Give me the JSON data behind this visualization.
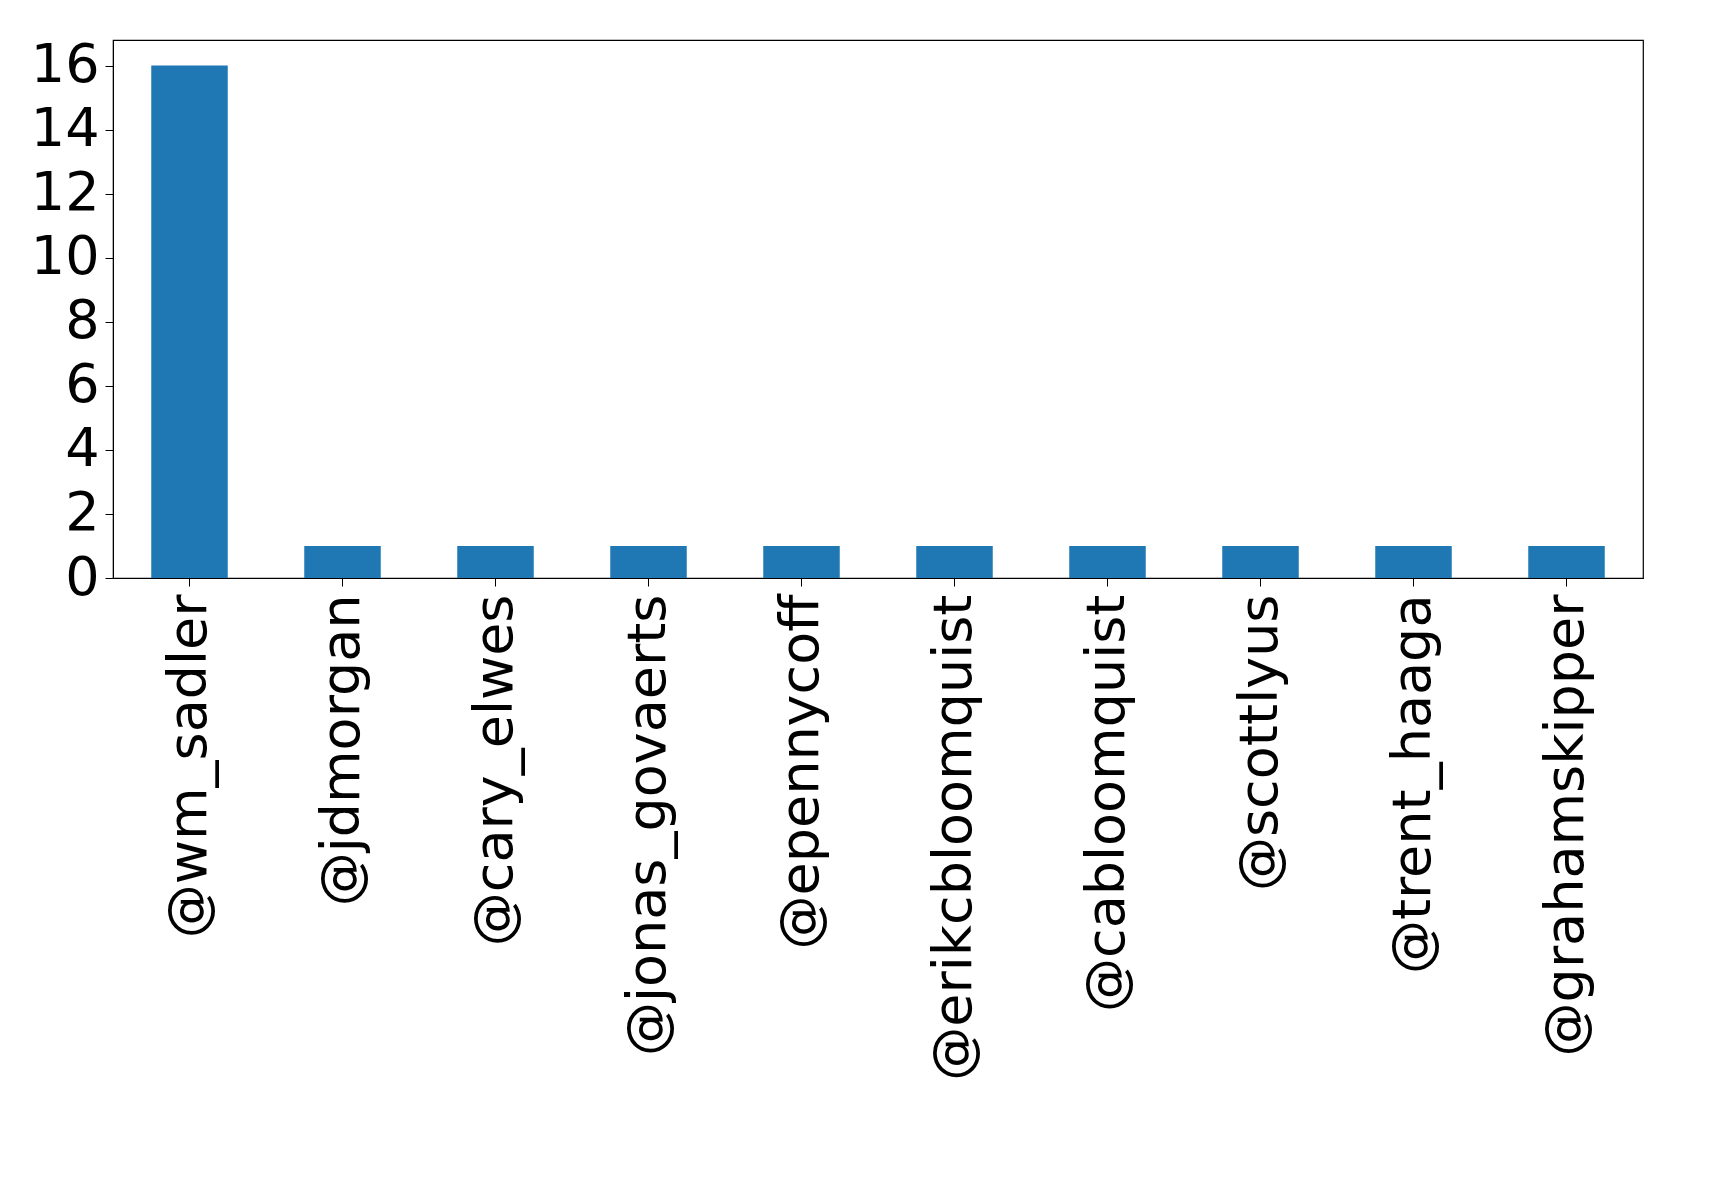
{
  "chart_data": {
    "type": "bar",
    "categories": [
      "@wm_sadler",
      "@jdmorgan",
      "@cary_elwes",
      "@jonas_govaerts",
      "@epennycoff",
      "@erikcbloomquist",
      "@cabloomquist",
      "@scottlyus",
      "@trent_haaga",
      "@grahamskipper"
    ],
    "values": [
      16,
      1,
      1,
      1,
      1,
      1,
      1,
      1,
      1,
      1
    ],
    "color": "#1f77b4",
    "ylim": [
      0,
      16.8
    ],
    "yticks": [
      0,
      2,
      4,
      6,
      8,
      10,
      12,
      14,
      16
    ],
    "grid": false
  }
}
